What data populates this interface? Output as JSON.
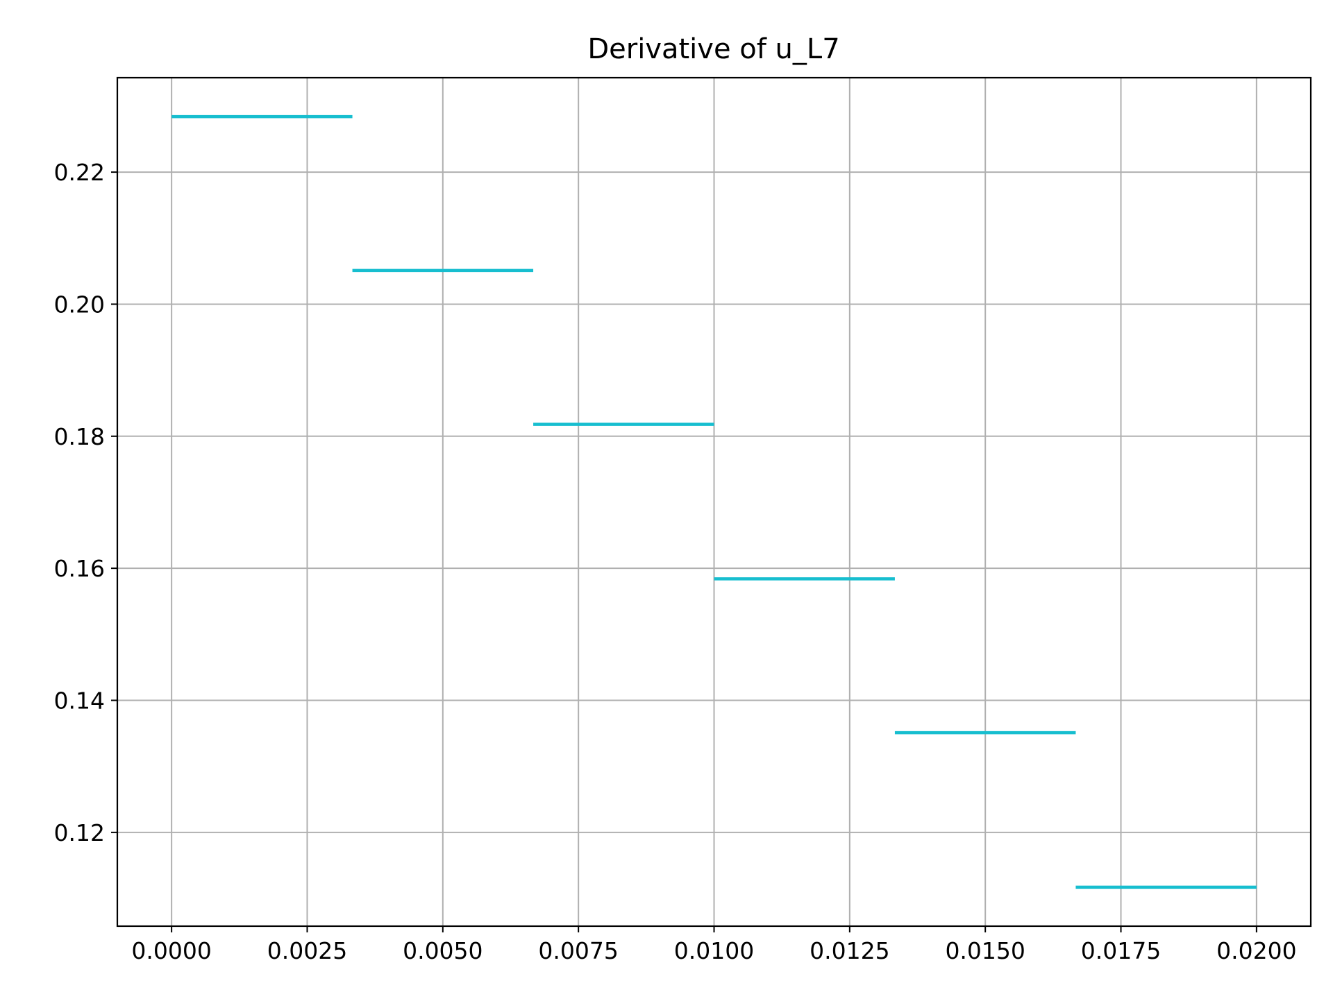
{
  "chart_data": {
    "type": "line",
    "title": "Derivative of u_L7",
    "xlabel": "",
    "ylabel": "",
    "xlim": [
      -0.001,
      0.021
    ],
    "ylim": [
      0.1058,
      0.2343
    ],
    "grid": true,
    "color": "#17becf",
    "x_ticks": [
      0.0,
      0.0025,
      0.005,
      0.0075,
      0.01,
      0.0125,
      0.015,
      0.0175,
      0.02
    ],
    "x_tick_labels": [
      "0.0000",
      "0.0025",
      "0.0050",
      "0.0075",
      "0.0100",
      "0.0125",
      "0.0150",
      "0.0175",
      "0.0200"
    ],
    "y_ticks": [
      0.12,
      0.14,
      0.16,
      0.18,
      0.2,
      0.22
    ],
    "y_tick_labels": [
      "0.12",
      "0.14",
      "0.16",
      "0.18",
      "0.20",
      "0.22"
    ],
    "series": [
      {
        "segments": [
          {
            "x": [
              0.0,
              0.003333
            ],
            "y": [
              0.2284,
              0.2284
            ]
          },
          {
            "x": [
              0.003333,
              0.006667
            ],
            "y": [
              0.2051,
              0.2051
            ]
          },
          {
            "x": [
              0.006667,
              0.01
            ],
            "y": [
              0.1818,
              0.1818
            ]
          },
          {
            "x": [
              0.01,
              0.013333
            ],
            "y": [
              0.1584,
              0.1584
            ]
          },
          {
            "x": [
              0.013333,
              0.016667
            ],
            "y": [
              0.1351,
              0.1351
            ]
          },
          {
            "x": [
              0.016667,
              0.02
            ],
            "y": [
              0.1117,
              0.1117
            ]
          }
        ]
      }
    ]
  }
}
